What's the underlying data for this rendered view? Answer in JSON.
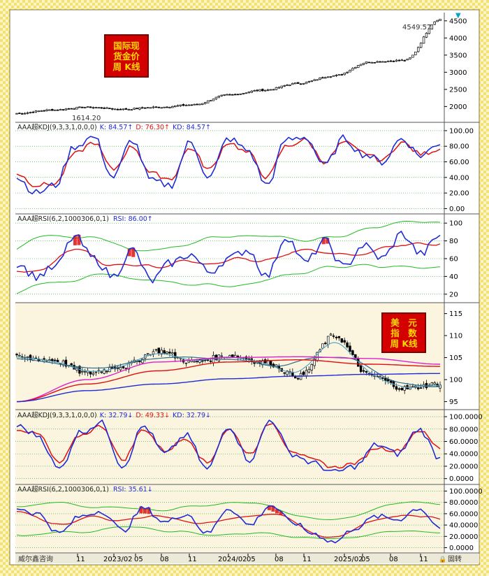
{
  "charts": {
    "top_badge": [
      "国际现",
      "货金价",
      "周 K线"
    ],
    "dxy_badge": [
      "美　元",
      "指　数",
      "周 K线"
    ],
    "panel1": {
      "last_price": "4549.57",
      "low_label": "1614.20",
      "right_ticks": [
        "4500",
        "4000",
        "3500",
        "3000",
        "2500",
        "2000"
      ]
    },
    "kdj1": {
      "name": "AAA超KDJ(9,3,3,1,0,0,0)",
      "k": "K: 84.57↑",
      "d": "D: 76.30↑",
      "kd": "KD: 84.57↑",
      "ticks": [
        "100.00",
        "80.00",
        "60.00",
        "40.00",
        "20.00",
        "0.00"
      ]
    },
    "rsi1": {
      "name": "AAA超RSI(6,2,1000306,0,1)",
      "rsi": "RSI: 86.00↑",
      "ticks": [
        "100",
        "80",
        "60",
        "40",
        "20"
      ]
    },
    "dxy": {
      "ticks": [
        "115",
        "110",
        "105",
        "100",
        "95"
      ]
    },
    "kdj2": {
      "name": "AAA超KDJ(9,3,3,1,0,0,0)",
      "k": "K: 32.79↓",
      "d": "D: 49.33↓",
      "kd": "KD: 32.79↓",
      "ticks": [
        "100.0000",
        "80.0000",
        "60.0000",
        "40.0000",
        "20.0000",
        "0.0000"
      ]
    },
    "rsi2": {
      "name": "AAA超RSI(6,2,1000306,0,1)",
      "rsi": "RSI: 35.61↓",
      "ticks": [
        "100.0000",
        "80.0000",
        "60.0000",
        "40.0000",
        "20.0000",
        "0.0000"
      ]
    }
  },
  "footer": {
    "watermark": "威尔鑫咨询",
    "dates": [
      "11",
      "2023/02",
      "05",
      "08",
      "11",
      "2024/02",
      "05",
      "08",
      "11",
      "2025/02",
      "05",
      "08",
      "11"
    ],
    "right_label": "固转"
  },
  "colors": {
    "k": "#1f2bd6",
    "d": "#e01010",
    "band": "#22bb22",
    "badge": "#d40000",
    "badge_text": "#ffd700"
  },
  "chart_data": [
    {
      "type": "line",
      "title": "国际现货金价周K线",
      "x": [
        "2022-11",
        "2023-02",
        "2023-05",
        "2023-08",
        "2023-11",
        "2024-02",
        "2024-05",
        "2024-08",
        "2024-11",
        "2025-02",
        "2025-05",
        "2025-08",
        "2025-11"
      ],
      "series": [
        {
          "values": [
            1760,
            1900,
            1980,
            1920,
            1980,
            2050,
            2340,
            2480,
            2680,
            2900,
            3300,
            3350,
            4549.57
          ]
        }
      ],
      "annotations": [
        "4549.57",
        "1614.20"
      ],
      "ylim": [
        1600,
        4700
      ]
    },
    {
      "type": "line",
      "title": "AAA超KDJ(9,3,3,1,0,0,0)",
      "series": [
        {
          "name": "K",
          "values": [
            40,
            20,
            30,
            80,
            92,
            40,
            88,
            35,
            30,
            85,
            40,
            90,
            75,
            30,
            88,
            92,
            55,
            90,
            70,
            60,
            90,
            68,
            84.57
          ]
        },
        {
          "name": "D",
          "values": [
            45,
            30,
            32,
            70,
            85,
            50,
            80,
            45,
            38,
            78,
            50,
            85,
            72,
            40,
            80,
            88,
            60,
            85,
            72,
            62,
            85,
            70,
            76.3
          ]
        }
      ],
      "ylim": [
        0,
        100
      ]
    },
    {
      "type": "line",
      "title": "AAA超RSI(6,2,1000306,0,1)",
      "series": [
        {
          "name": "RSI",
          "values": [
            55,
            40,
            50,
            85,
            60,
            40,
            70,
            35,
            55,
            65,
            45,
            60,
            70,
            40,
            85,
            55,
            80,
            50,
            75,
            60,
            88,
            65,
            86.0
          ]
        }
      ],
      "ylim": [
        15,
        105
      ]
    },
    {
      "type": "line",
      "title": "美元指数周K线",
      "x": [
        "2022-11",
        "2023-02",
        "2023-05",
        "2023-08",
        "2023-11",
        "2024-02",
        "2024-05",
        "2024-08",
        "2024-11",
        "2025-02",
        "2025-05",
        "2025-08",
        "2025-11"
      ],
      "series": [
        {
          "values": [
            105,
            104.5,
            101.5,
            103,
            106.5,
            104,
            105.5,
            104,
            100.8,
            110,
            101,
            98,
            99
          ]
        }
      ],
      "ylim": [
        94,
        116
      ]
    },
    {
      "type": "line",
      "title": "AAA超KDJ(9,3,3,1,0,0,0)",
      "series": [
        {
          "name": "K",
          "values": [
            85,
            70,
            15,
            75,
            90,
            20,
            85,
            40,
            70,
            15,
            85,
            30,
            95,
            40,
            25,
            10,
            20,
            55,
            40,
            80,
            32.79
          ]
        },
        {
          "name": "D",
          "values": [
            80,
            72,
            25,
            70,
            85,
            30,
            80,
            45,
            65,
            25,
            80,
            40,
            90,
            45,
            30,
            18,
            25,
            50,
            45,
            78,
            49.33
          ]
        }
      ],
      "ylim": [
        0,
        100
      ]
    },
    {
      "type": "line",
      "title": "AAA超RSI(6,2,1000306,0,1)",
      "series": [
        {
          "name": "RSI",
          "values": [
            70,
            60,
            25,
            55,
            65,
            30,
            70,
            45,
            60,
            25,
            70,
            40,
            75,
            45,
            25,
            10,
            35,
            55,
            50,
            70,
            35.61
          ]
        }
      ],
      "ylim": [
        0,
        100
      ]
    }
  ]
}
